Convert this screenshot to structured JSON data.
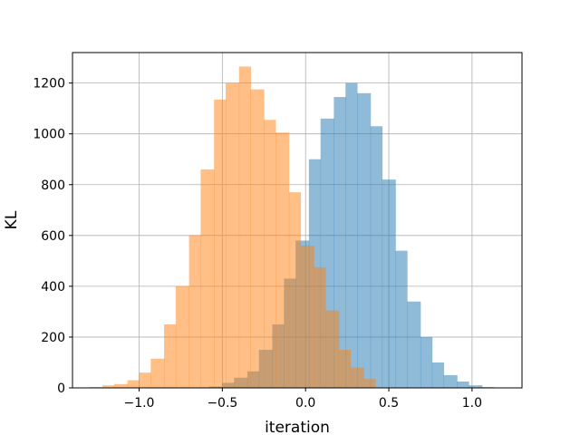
{
  "chart_data": {
    "type": "histogram",
    "xlabel": "iteration",
    "ylabel": "KL",
    "xlim": [
      -1.4,
      1.3
    ],
    "ylim": [
      0,
      1320
    ],
    "xticks": [
      -1.0,
      -0.5,
      0.0,
      0.5,
      1.0
    ],
    "xtick_labels": [
      "−1.0",
      "−0.5",
      "0.0",
      "0.5",
      "1.0"
    ],
    "yticks": [
      0,
      200,
      400,
      600,
      800,
      1000,
      1200
    ],
    "ytick_labels": [
      "0",
      "200",
      "400",
      "600",
      "800",
      "1000",
      "1200"
    ],
    "grid": true,
    "legend": false,
    "series": [
      {
        "color": "#1f77b4",
        "alpha": 0.5,
        "bins": [
          [
            -0.58,
            -0.5,
            5
          ],
          [
            -0.5,
            -0.43,
            20
          ],
          [
            -0.43,
            -0.35,
            40
          ],
          [
            -0.35,
            -0.28,
            65
          ],
          [
            -0.28,
            -0.2,
            150
          ],
          [
            -0.2,
            -0.13,
            250
          ],
          [
            -0.13,
            -0.06,
            430
          ],
          [
            -0.06,
            0.02,
            580
          ],
          [
            0.02,
            0.09,
            900
          ],
          [
            0.09,
            0.17,
            1060
          ],
          [
            0.17,
            0.24,
            1145
          ],
          [
            0.24,
            0.31,
            1200
          ],
          [
            0.31,
            0.39,
            1160
          ],
          [
            0.39,
            0.46,
            1030
          ],
          [
            0.46,
            0.54,
            820
          ],
          [
            0.54,
            0.61,
            540
          ],
          [
            0.61,
            0.69,
            340
          ],
          [
            0.69,
            0.76,
            200
          ],
          [
            0.76,
            0.83,
            100
          ],
          [
            0.83,
            0.91,
            50
          ],
          [
            0.91,
            0.98,
            25
          ],
          [
            0.98,
            1.06,
            10
          ],
          [
            1.06,
            1.13,
            3
          ]
        ]
      },
      {
        "color": "#ff7f0e",
        "alpha": 0.5,
        "bins": [
          [
            -1.3,
            -1.22,
            3
          ],
          [
            -1.22,
            -1.15,
            10
          ],
          [
            -1.15,
            -1.07,
            15
          ],
          [
            -1.07,
            -1.0,
            30
          ],
          [
            -1.0,
            -0.93,
            60
          ],
          [
            -0.93,
            -0.85,
            115
          ],
          [
            -0.85,
            -0.78,
            250
          ],
          [
            -0.78,
            -0.7,
            400
          ],
          [
            -0.7,
            -0.63,
            600
          ],
          [
            -0.63,
            -0.55,
            860
          ],
          [
            -0.55,
            -0.48,
            1135
          ],
          [
            -0.48,
            -0.4,
            1200
          ],
          [
            -0.4,
            -0.33,
            1265
          ],
          [
            -0.33,
            -0.25,
            1175
          ],
          [
            -0.25,
            -0.18,
            1055
          ],
          [
            -0.18,
            -0.1,
            1005
          ],
          [
            -0.1,
            -0.03,
            770
          ],
          [
            -0.03,
            0.05,
            560
          ],
          [
            0.05,
            0.12,
            475
          ],
          [
            0.12,
            0.2,
            305
          ],
          [
            0.2,
            0.27,
            150
          ],
          [
            0.27,
            0.35,
            80
          ],
          [
            0.35,
            0.42,
            35
          ]
        ]
      }
    ]
  }
}
